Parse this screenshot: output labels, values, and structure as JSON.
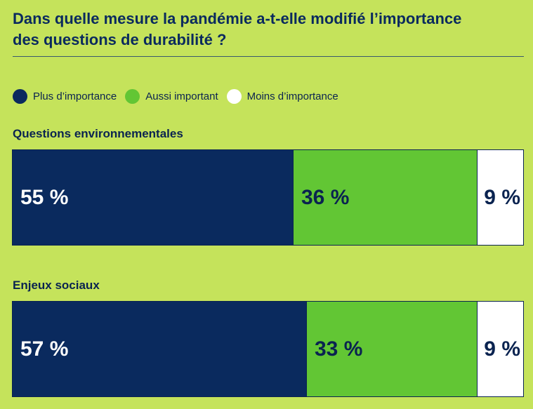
{
  "title": {
    "line1": "Dans quelle mesure la pandémie a-t-elle modifié l’importance",
    "line2": "des questions de durabilité ?"
  },
  "colors": {
    "background": "#c5e35b",
    "plus": "#0a2a5e",
    "aussi": "#62c634",
    "moins": "#ffffff",
    "text_dark": "#0a2350"
  },
  "chart_data": {
    "type": "bar",
    "orientation": "horizontal",
    "stacked": true,
    "title": "Dans quelle mesure la pandémie a-t-elle modifié l’importance des questions de durabilité ?",
    "categories": [
      "Questions environnementales",
      "Enjeux sociaux"
    ],
    "series": [
      {
        "name": "Plus d’importance",
        "values": [
          55,
          57
        ],
        "labels": [
          "55 %",
          "57 %"
        ]
      },
      {
        "name": "Aussi important",
        "values": [
          36,
          33
        ],
        "labels": [
          "36 %",
          "33 %"
        ]
      },
      {
        "name": "Moins d’importance",
        "values": [
          9,
          9
        ],
        "labels": [
          "9 %",
          "9 %"
        ]
      }
    ],
    "unit": "%",
    "legend": [
      "Plus d’importance",
      "Aussi important",
      "Moins d’importance"
    ],
    "legend_position": "top-left"
  }
}
